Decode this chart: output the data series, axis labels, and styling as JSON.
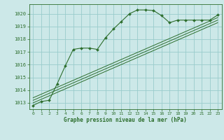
{
  "title": "Graphe pression niveau de la mer (hPa)",
  "bg_color": "#cce8e8",
  "grid_color": "#99cccc",
  "line_color": "#2d6e2d",
  "xlabel_color": "#1a4a1a",
  "xlim": [
    -0.5,
    23.5
  ],
  "ylim": [
    1012.5,
    1020.75
  ],
  "yticks": [
    1013,
    1014,
    1015,
    1016,
    1017,
    1018,
    1019,
    1020
  ],
  "xticks": [
    0,
    1,
    2,
    3,
    4,
    5,
    6,
    7,
    8,
    9,
    10,
    11,
    12,
    13,
    14,
    15,
    16,
    17,
    18,
    19,
    20,
    21,
    22,
    23
  ],
  "main_x": [
    0,
    1,
    2,
    3,
    4,
    5,
    6,
    7,
    8,
    9,
    10,
    11,
    12,
    13,
    14,
    15,
    16,
    17,
    18,
    19,
    20,
    21,
    22,
    23
  ],
  "main_y": [
    1012.8,
    1013.1,
    1013.2,
    1014.5,
    1015.9,
    1017.2,
    1017.3,
    1017.3,
    1017.2,
    1018.1,
    1018.8,
    1019.4,
    1020.0,
    1020.3,
    1020.3,
    1020.25,
    1019.85,
    1019.3,
    1019.5,
    1019.5,
    1019.5,
    1019.5,
    1019.5,
    1019.9
  ],
  "line2_x": [
    0,
    23
  ],
  "line2_y": [
    1013.0,
    1019.3
  ],
  "line3_x": [
    0,
    23
  ],
  "line3_y": [
    1013.2,
    1019.5
  ],
  "line4_x": [
    0,
    23
  ],
  "line4_y": [
    1013.4,
    1019.7
  ],
  "figsize": [
    3.2,
    2.0
  ],
  "dpi": 100
}
